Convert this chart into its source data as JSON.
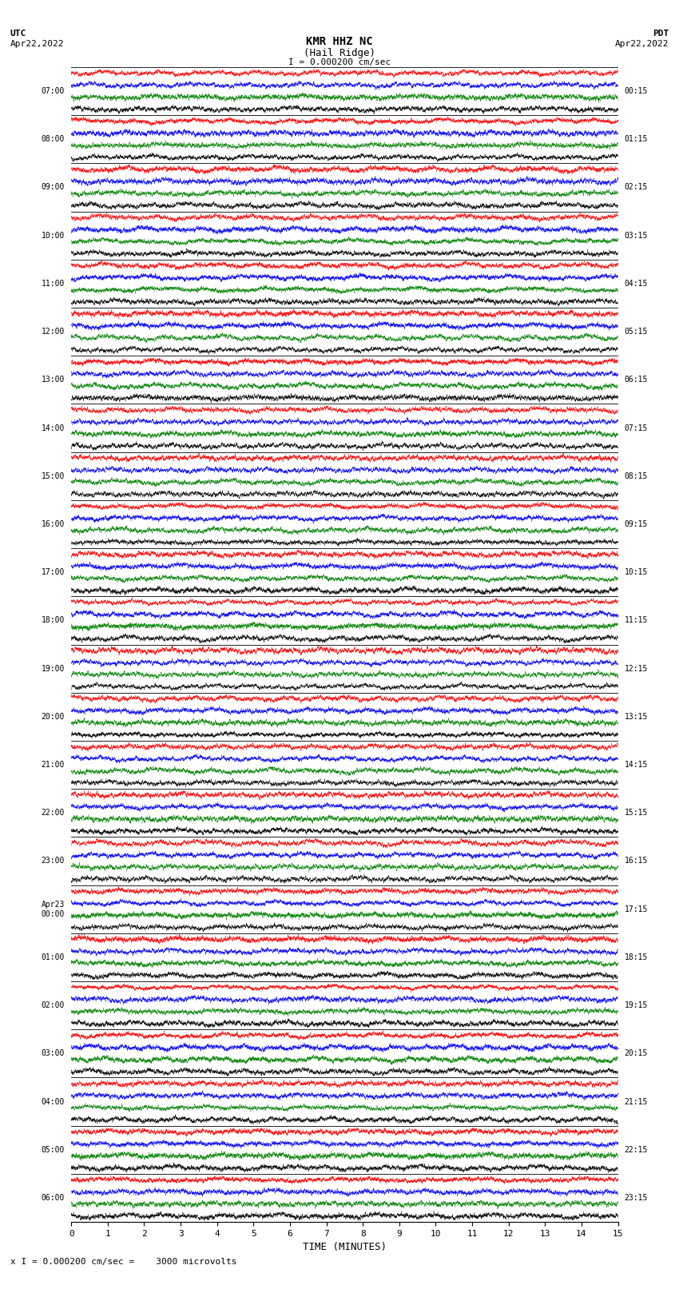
{
  "title_line1": "KMR HHZ NC",
  "title_line2": "(Hail Ridge)",
  "scale_text": "I = 0.000200 cm/sec",
  "utc_label": "UTC",
  "date_left": "Apr22,2022",
  "pdt_label": "PDT",
  "date_right": "Apr22,2022",
  "xlabel": "TIME (MINUTES)",
  "bottom_label": "x I = 0.000200 cm/sec =    3000 microvolts",
  "left_times_utc": [
    "07:00",
    "08:00",
    "09:00",
    "10:00",
    "11:00",
    "12:00",
    "13:00",
    "14:00",
    "15:00",
    "16:00",
    "17:00",
    "18:00",
    "19:00",
    "20:00",
    "21:00",
    "22:00",
    "23:00",
    "Apr23\n00:00",
    "01:00",
    "02:00",
    "03:00",
    "04:00",
    "05:00",
    "06:00"
  ],
  "right_times_pdt": [
    "00:15",
    "01:15",
    "02:15",
    "03:15",
    "04:15",
    "05:15",
    "06:15",
    "07:15",
    "08:15",
    "09:15",
    "10:15",
    "11:15",
    "12:15",
    "13:15",
    "14:15",
    "15:15",
    "16:15",
    "17:15",
    "18:15",
    "19:15",
    "20:15",
    "21:15",
    "22:15",
    "23:15"
  ],
  "num_rows": 24,
  "minutes_per_row": 15,
  "xticks": [
    0,
    1,
    2,
    3,
    4,
    5,
    6,
    7,
    8,
    9,
    10,
    11,
    12,
    13,
    14,
    15
  ],
  "colors": [
    "red",
    "blue",
    "green",
    "black"
  ],
  "bg_color": "white",
  "figwidth": 8.5,
  "figheight": 16.13
}
